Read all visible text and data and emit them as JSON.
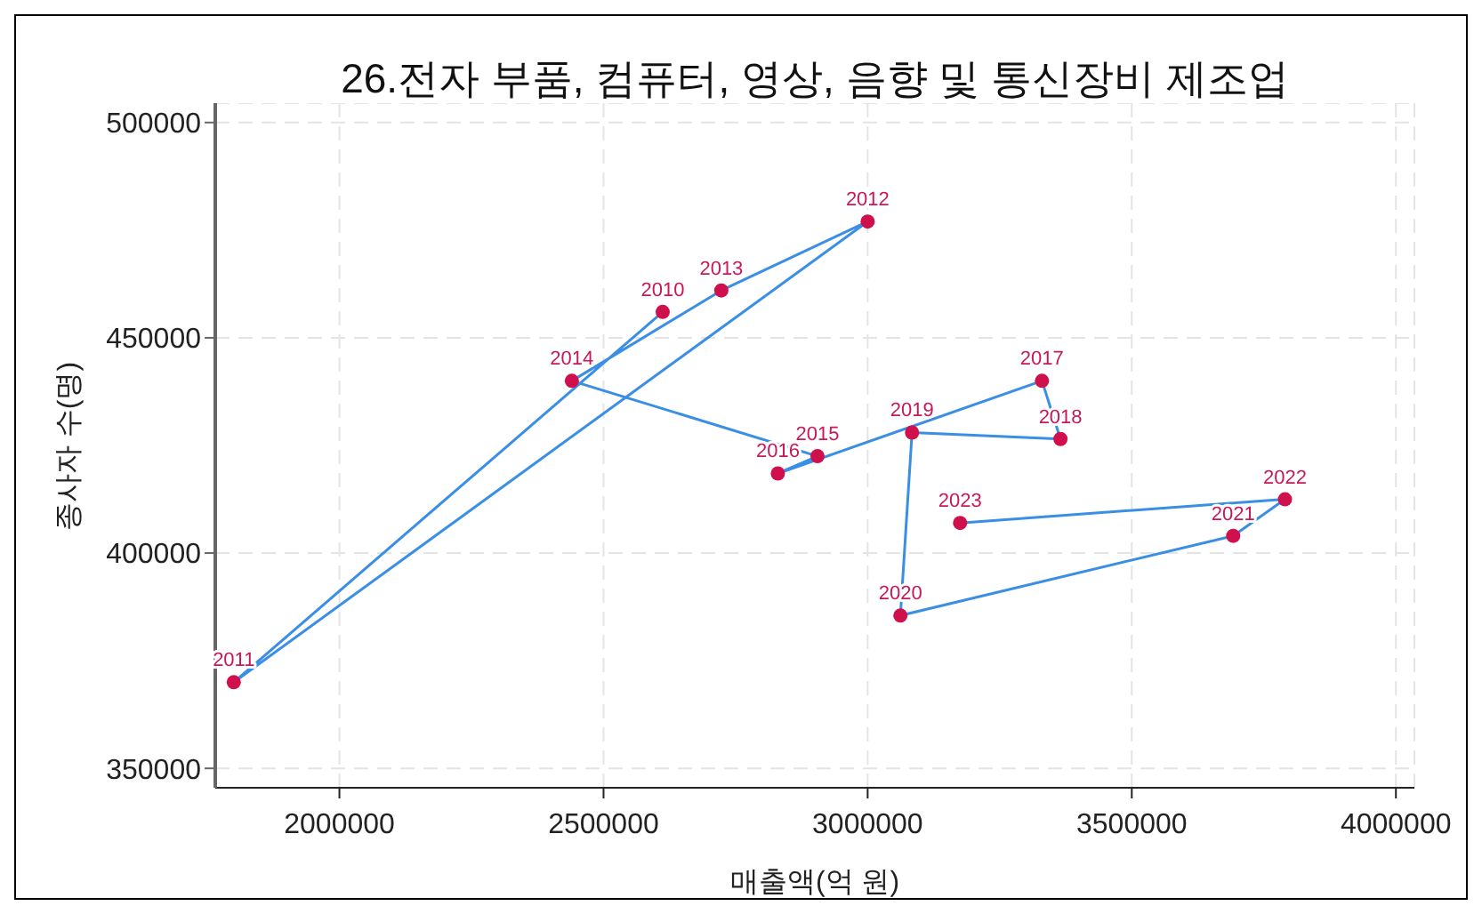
{
  "chart_data": {
    "type": "line",
    "title": "26.전자 부품, 컴퓨터, 영상, 음향 및 통신장비 제조업",
    "xlabel": "매출액(억 원)",
    "ylabel": "종사자 수(명)",
    "x": [
      2612000,
      1800000,
      3000000,
      2723000,
      2440000,
      2905000,
      2830000,
      3330000,
      3365000,
      3084000,
      3062000,
      3692000,
      3790000,
      3175000
    ],
    "series": [
      {
        "color": "#3a8ee6",
        "colors": [
          "#d0104c",
          "#d0104c",
          "#d0104c",
          "#d0104c",
          "#d0104c",
          "#d0104c",
          "#d0104c",
          "#d0104c",
          "#d0104c",
          "#d0104c",
          "#d0104c",
          "#d0104c",
          "#d0104c",
          "#d0104c"
        ],
        "values": [
          456000,
          370000,
          477000,
          461000,
          440000,
          422500,
          418500,
          440000,
          426500,
          428000,
          385500,
          404000,
          412500,
          407000
        ]
      }
    ],
    "annotations": [
      {
        "text": "2010",
        "x": 2612000,
        "y": 456000
      },
      {
        "text": "2011",
        "x": 1800000,
        "y": 370000
      },
      {
        "text": "2012",
        "x": 3000000,
        "y": 477000
      },
      {
        "text": "2013",
        "x": 2723000,
        "y": 461000
      },
      {
        "text": "2014",
        "x": 2440000,
        "y": 440000
      },
      {
        "text": "2015",
        "x": 2905000,
        "y": 422500
      },
      {
        "text": "2016",
        "x": 2830000,
        "y": 418500
      },
      {
        "text": "2017",
        "x": 3330000,
        "y": 440000
      },
      {
        "text": "2018",
        "x": 3365000,
        "y": 426500
      },
      {
        "text": "2019",
        "x": 3084000,
        "y": 428000
      },
      {
        "text": "2020",
        "x": 3062000,
        "y": 385500
      },
      {
        "text": "2021",
        "x": 3692000,
        "y": 404000
      },
      {
        "text": "2022",
        "x": 3790000,
        "y": 412500
      },
      {
        "text": "2023",
        "x": 3175000,
        "y": 407000
      }
    ],
    "xlim": [
      1765000,
      4035000
    ],
    "xticks": [
      2000000,
      2500000,
      3000000,
      3500000,
      4000000
    ],
    "ylim": [
      345500,
      504500
    ],
    "yticks": [
      350000,
      400000,
      450000,
      500000
    ],
    "grid": true,
    "marker": "circle",
    "line_style": "solid",
    "legend": false
  }
}
